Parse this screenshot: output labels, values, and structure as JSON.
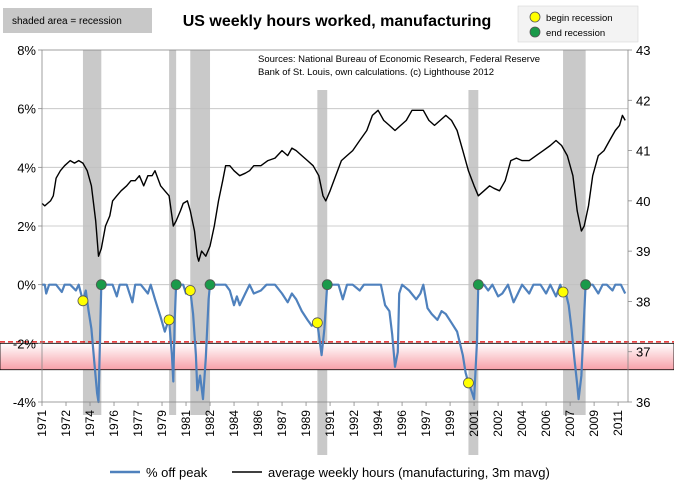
{
  "chart_data": {
    "type": "line",
    "title": "US weekly hours worked, manufacturing",
    "notes": {
      "shaded": "shaded area = recession",
      "sources_line1": "Sources: National Bureau of Economic Research, Federal Reserve",
      "sources_line2": "Bank of St. Louis, own calculations. (c) Lighthouse 2012",
      "legend_begin": "begin recession",
      "legend_end": "end recession"
    },
    "x_range": [
      1971,
      2012.5
    ],
    "x_ticks": [
      "1971",
      "1972",
      "1974",
      "1976",
      "1977",
      "1979",
      "1981",
      "1982",
      "1984",
      "1986",
      "1987",
      "1989",
      "1991",
      "1992",
      "1994",
      "1996",
      "1997",
      "1999",
      "2001",
      "2002",
      "2004",
      "2006",
      "2007",
      "2009",
      "2011"
    ],
    "x_tick_values": [
      1971.0,
      1972.7,
      1974.4,
      1976.1,
      1977.8,
      1979.5,
      1981.2,
      1982.9,
      1984.6,
      1986.3,
      1988.0,
      1989.7,
      1991.4,
      1993.1,
      1994.8,
      1996.5,
      1998.2,
      1999.9,
      2001.6,
      2003.3,
      2005.0,
      2006.7,
      2008.4,
      2010.1,
      2011.8
    ],
    "y_left": {
      "min": -4,
      "max": 8,
      "ticks": [
        "-4%",
        "-2%",
        "0%",
        "2%",
        "4%",
        "6%",
        "8%"
      ],
      "tick_values": [
        -4,
        -2,
        0,
        2,
        4,
        6,
        8
      ]
    },
    "y_right": {
      "min": 36,
      "max": 43,
      "ticks": [
        "36",
        "37",
        "38",
        "39",
        "40",
        "41",
        "42",
        "43"
      ],
      "tick_values": [
        36,
        37,
        38,
        39,
        40,
        41,
        42,
        43
      ]
    },
    "recessions": [
      [
        1973.9,
        1975.2
      ],
      [
        1980.0,
        1980.5
      ],
      [
        1981.5,
        1982.9
      ],
      [
        1990.5,
        1991.2
      ],
      [
        2001.2,
        2001.9
      ],
      [
        2007.9,
        2009.5
      ]
    ],
    "begin_markers": [
      [
        1973.9,
        -0.55
      ],
      [
        1980.0,
        -1.2
      ],
      [
        1981.5,
        -0.2
      ],
      [
        1990.5,
        -1.3
      ],
      [
        2001.2,
        -3.35
      ],
      [
        2007.9,
        -0.25
      ]
    ],
    "end_markers": [
      [
        1975.2,
        0
      ],
      [
        1980.5,
        0
      ],
      [
        1982.9,
        0
      ],
      [
        1991.2,
        0
      ],
      [
        2001.9,
        0
      ],
      [
        2009.5,
        0
      ]
    ],
    "threshold_band": [
      -2.9,
      -2.0
    ],
    "threshold_line": -1.95,
    "series": [
      {
        "name": "% off peak",
        "axis": "left",
        "color": "#4f81bd",
        "points": [
          [
            1971.0,
            0
          ],
          [
            1971.2,
            0
          ],
          [
            1971.3,
            -0.3
          ],
          [
            1971.5,
            0
          ],
          [
            1972.0,
            0
          ],
          [
            1972.4,
            -0.25
          ],
          [
            1972.6,
            0
          ],
          [
            1973.0,
            0
          ],
          [
            1973.4,
            -0.2
          ],
          [
            1973.6,
            0
          ],
          [
            1973.9,
            -0.55
          ],
          [
            1974.1,
            -0.2
          ],
          [
            1974.3,
            -0.9
          ],
          [
            1974.5,
            -1.5
          ],
          [
            1974.7,
            -2.6
          ],
          [
            1974.9,
            -3.7
          ],
          [
            1975.0,
            -4.0
          ],
          [
            1975.1,
            -2.0
          ],
          [
            1975.2,
            0
          ],
          [
            1976.0,
            0
          ],
          [
            1976.3,
            -0.4
          ],
          [
            1976.5,
            0
          ],
          [
            1977.0,
            0
          ],
          [
            1977.4,
            -0.6
          ],
          [
            1977.6,
            0
          ],
          [
            1978.0,
            0
          ],
          [
            1978.5,
            -0.3
          ],
          [
            1978.7,
            0
          ],
          [
            1979.0,
            -0.5
          ],
          [
            1979.4,
            -1.1
          ],
          [
            1979.7,
            -1.6
          ],
          [
            1979.9,
            -1.3
          ],
          [
            1980.0,
            -1.2
          ],
          [
            1980.2,
            -2.4
          ],
          [
            1980.3,
            -3.3
          ],
          [
            1980.4,
            -1.2
          ],
          [
            1980.5,
            0
          ],
          [
            1981.0,
            0
          ],
          [
            1981.2,
            -0.3
          ],
          [
            1981.5,
            -0.2
          ],
          [
            1981.7,
            -1.0
          ],
          [
            1981.9,
            -2.4
          ],
          [
            1982.0,
            -3.6
          ],
          [
            1982.2,
            -3.1
          ],
          [
            1982.4,
            -3.9
          ],
          [
            1982.6,
            -2.5
          ],
          [
            1982.8,
            -0.5
          ],
          [
            1982.9,
            0
          ],
          [
            1984.0,
            0
          ],
          [
            1984.3,
            -0.2
          ],
          [
            1984.6,
            -0.7
          ],
          [
            1984.8,
            -0.4
          ],
          [
            1985.0,
            -0.7
          ],
          [
            1985.4,
            -0.3
          ],
          [
            1985.7,
            0
          ],
          [
            1986.0,
            -0.3
          ],
          [
            1986.5,
            -0.2
          ],
          [
            1986.9,
            0
          ],
          [
            1987.5,
            0
          ],
          [
            1988.0,
            -0.3
          ],
          [
            1988.4,
            -0.6
          ],
          [
            1988.7,
            -0.3
          ],
          [
            1989.0,
            -0.5
          ],
          [
            1989.4,
            -0.9
          ],
          [
            1989.8,
            -1.2
          ],
          [
            1990.1,
            -1.4
          ],
          [
            1990.5,
            -1.3
          ],
          [
            1990.8,
            -2.4
          ],
          [
            1991.0,
            -1.5
          ],
          [
            1991.2,
            0
          ],
          [
            1992.0,
            0
          ],
          [
            1992.3,
            -0.5
          ],
          [
            1992.6,
            0
          ],
          [
            1993.0,
            0
          ],
          [
            1993.5,
            -0.2
          ],
          [
            1993.8,
            0
          ],
          [
            1994.5,
            0
          ],
          [
            1995.0,
            0
          ],
          [
            1995.3,
            -0.7
          ],
          [
            1995.6,
            -0.9
          ],
          [
            1995.8,
            -1.7
          ],
          [
            1996.0,
            -2.8
          ],
          [
            1996.2,
            -2.3
          ],
          [
            1996.3,
            -0.3
          ],
          [
            1996.5,
            0
          ],
          [
            1997.0,
            -0.2
          ],
          [
            1997.5,
            -0.5
          ],
          [
            1997.8,
            -0.3
          ],
          [
            1998.0,
            0
          ],
          [
            1998.3,
            -0.8
          ],
          [
            1998.6,
            -1.0
          ],
          [
            1999.0,
            -1.2
          ],
          [
            1999.3,
            -0.9
          ],
          [
            1999.6,
            -1.0
          ],
          [
            2000.0,
            -1.3
          ],
          [
            2000.4,
            -1.6
          ],
          [
            2000.8,
            -2.4
          ],
          [
            2001.0,
            -3.0
          ],
          [
            2001.2,
            -3.35
          ],
          [
            2001.4,
            -3.6
          ],
          [
            2001.6,
            -3.9
          ],
          [
            2001.8,
            -2.0
          ],
          [
            2001.9,
            0
          ],
          [
            2002.3,
            0
          ],
          [
            2002.6,
            -0.2
          ],
          [
            2002.9,
            0
          ],
          [
            2003.3,
            -0.4
          ],
          [
            2003.6,
            -0.3
          ],
          [
            2004.0,
            0
          ],
          [
            2004.4,
            -0.6
          ],
          [
            2004.7,
            -0.3
          ],
          [
            2005.0,
            0
          ],
          [
            2005.5,
            -0.3
          ],
          [
            2005.8,
            0
          ],
          [
            2006.3,
            0
          ],
          [
            2006.7,
            -0.3
          ],
          [
            2007.0,
            0
          ],
          [
            2007.4,
            -0.4
          ],
          [
            2007.7,
            0
          ],
          [
            2007.9,
            -0.25
          ],
          [
            2008.1,
            -0.3
          ],
          [
            2008.3,
            -0.7
          ],
          [
            2008.5,
            -1.5
          ],
          [
            2008.7,
            -2.5
          ],
          [
            2008.9,
            -3.4
          ],
          [
            2009.0,
            -3.9
          ],
          [
            2009.2,
            -3.1
          ],
          [
            2009.35,
            -1.5
          ],
          [
            2009.5,
            0
          ],
          [
            2010.0,
            0
          ],
          [
            2010.4,
            -0.3
          ],
          [
            2010.7,
            0
          ],
          [
            2011.0,
            0
          ],
          [
            2011.4,
            -0.2
          ],
          [
            2011.6,
            0
          ],
          [
            2012.0,
            0
          ],
          [
            2012.3,
            -0.3
          ]
        ]
      },
      {
        "name": "average weekly hours (manufacturing, 3m mavg)",
        "axis": "right",
        "color": "#000000",
        "points": [
          [
            1971.0,
            39.95
          ],
          [
            1971.2,
            39.9
          ],
          [
            1971.4,
            39.95
          ],
          [
            1971.6,
            40.0
          ],
          [
            1971.8,
            40.1
          ],
          [
            1972.0,
            40.45
          ],
          [
            1972.3,
            40.6
          ],
          [
            1972.6,
            40.7
          ],
          [
            1973.0,
            40.8
          ],
          [
            1973.3,
            40.75
          ],
          [
            1973.6,
            40.8
          ],
          [
            1973.9,
            40.75
          ],
          [
            1974.2,
            40.6
          ],
          [
            1974.5,
            40.3
          ],
          [
            1974.8,
            39.6
          ],
          [
            1975.0,
            38.9
          ],
          [
            1975.2,
            39.05
          ],
          [
            1975.5,
            39.5
          ],
          [
            1975.8,
            39.7
          ],
          [
            1976.0,
            40.0
          ],
          [
            1976.3,
            40.1
          ],
          [
            1976.6,
            40.2
          ],
          [
            1977.0,
            40.3
          ],
          [
            1977.3,
            40.4
          ],
          [
            1977.6,
            40.4
          ],
          [
            1977.9,
            40.5
          ],
          [
            1978.2,
            40.3
          ],
          [
            1978.5,
            40.5
          ],
          [
            1978.8,
            40.5
          ],
          [
            1979.0,
            40.6
          ],
          [
            1979.4,
            40.3
          ],
          [
            1979.7,
            40.2
          ],
          [
            1980.0,
            40.1
          ],
          [
            1980.3,
            39.5
          ],
          [
            1980.5,
            39.6
          ],
          [
            1980.8,
            39.8
          ],
          [
            1981.0,
            39.95
          ],
          [
            1981.3,
            40.0
          ],
          [
            1981.5,
            39.8
          ],
          [
            1981.8,
            39.4
          ],
          [
            1982.0,
            38.9
          ],
          [
            1982.1,
            38.8
          ],
          [
            1982.3,
            39.0
          ],
          [
            1982.6,
            38.9
          ],
          [
            1982.9,
            39.1
          ],
          [
            1983.2,
            39.5
          ],
          [
            1983.5,
            40.0
          ],
          [
            1983.8,
            40.4
          ],
          [
            1984.0,
            40.7
          ],
          [
            1984.3,
            40.7
          ],
          [
            1984.6,
            40.6
          ],
          [
            1985.0,
            40.5
          ],
          [
            1985.4,
            40.55
          ],
          [
            1985.7,
            40.6
          ],
          [
            1986.0,
            40.7
          ],
          [
            1986.5,
            40.7
          ],
          [
            1987.0,
            40.8
          ],
          [
            1987.5,
            40.85
          ],
          [
            1988.0,
            41.0
          ],
          [
            1988.4,
            40.9
          ],
          [
            1988.7,
            41.05
          ],
          [
            1989.0,
            41.0
          ],
          [
            1989.4,
            40.9
          ],
          [
            1989.8,
            40.8
          ],
          [
            1990.2,
            40.7
          ],
          [
            1990.6,
            40.5
          ],
          [
            1990.9,
            40.1
          ],
          [
            1991.1,
            40.0
          ],
          [
            1991.4,
            40.2
          ],
          [
            1991.8,
            40.5
          ],
          [
            1992.2,
            40.8
          ],
          [
            1992.6,
            40.9
          ],
          [
            1993.0,
            41.0
          ],
          [
            1993.5,
            41.2
          ],
          [
            1994.0,
            41.4
          ],
          [
            1994.4,
            41.7
          ],
          [
            1994.8,
            41.8
          ],
          [
            1995.2,
            41.6
          ],
          [
            1995.6,
            41.5
          ],
          [
            1996.0,
            41.4
          ],
          [
            1996.4,
            41.5
          ],
          [
            1996.8,
            41.6
          ],
          [
            1997.2,
            41.8
          ],
          [
            1997.6,
            41.8
          ],
          [
            1998.0,
            41.8
          ],
          [
            1998.4,
            41.6
          ],
          [
            1998.8,
            41.5
          ],
          [
            1999.2,
            41.6
          ],
          [
            1999.6,
            41.7
          ],
          [
            2000.0,
            41.6
          ],
          [
            2000.4,
            41.4
          ],
          [
            2000.8,
            41.0
          ],
          [
            2001.2,
            40.6
          ],
          [
            2001.6,
            40.3
          ],
          [
            2001.9,
            40.1
          ],
          [
            2002.3,
            40.2
          ],
          [
            2002.7,
            40.3
          ],
          [
            2003.0,
            40.25
          ],
          [
            2003.4,
            40.2
          ],
          [
            2003.8,
            40.4
          ],
          [
            2004.2,
            40.8
          ],
          [
            2004.6,
            40.85
          ],
          [
            2005.0,
            40.8
          ],
          [
            2005.5,
            40.8
          ],
          [
            2006.0,
            40.9
          ],
          [
            2006.5,
            41.0
          ],
          [
            2007.0,
            41.1
          ],
          [
            2007.4,
            41.2
          ],
          [
            2007.8,
            41.1
          ],
          [
            2008.2,
            40.9
          ],
          [
            2008.6,
            40.5
          ],
          [
            2008.9,
            39.8
          ],
          [
            2009.2,
            39.4
          ],
          [
            2009.4,
            39.5
          ],
          [
            2009.7,
            39.9
          ],
          [
            2010.0,
            40.5
          ],
          [
            2010.4,
            40.9
          ],
          [
            2010.8,
            41.0
          ],
          [
            2011.2,
            41.2
          ],
          [
            2011.6,
            41.4
          ],
          [
            2011.9,
            41.5
          ],
          [
            2012.1,
            41.7
          ],
          [
            2012.3,
            41.6
          ]
        ]
      }
    ],
    "legend": [
      "% off peak",
      "average weekly hours (manufacturing, 3m mavg)"
    ]
  }
}
